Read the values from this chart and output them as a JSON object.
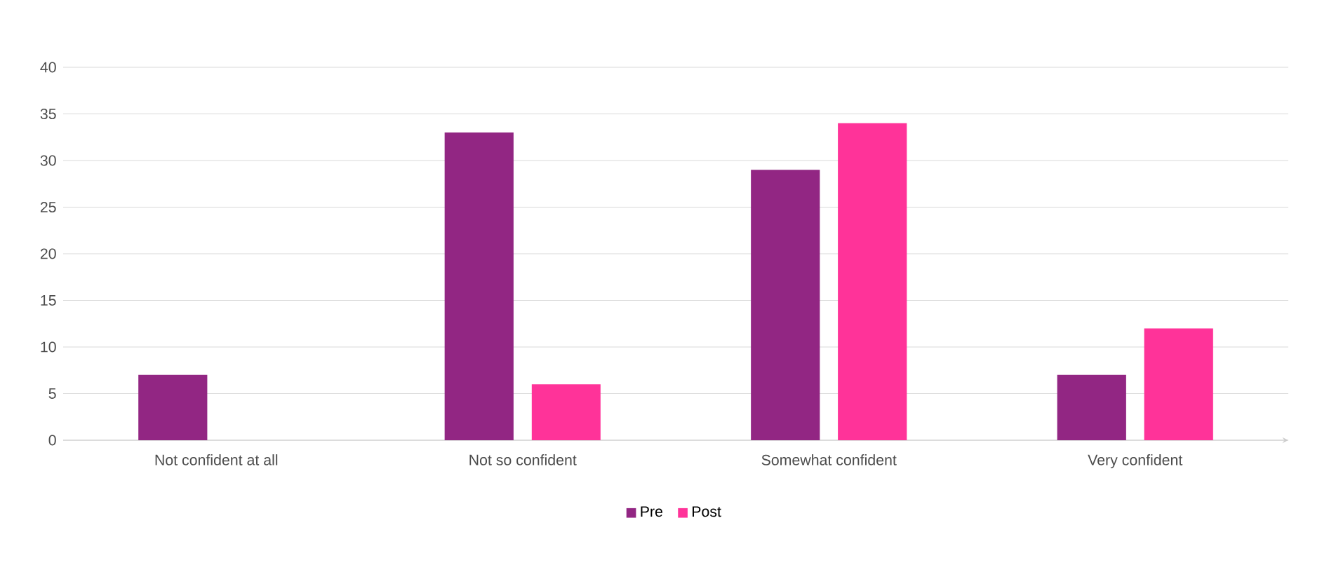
{
  "chart_data": {
    "type": "bar",
    "categories": [
      "Not confident at all",
      "Not so confident",
      "Somewhat confident",
      "Very confident"
    ],
    "series": [
      {
        "name": "Pre",
        "color": "#922683",
        "values": [
          7,
          33,
          29,
          7
        ]
      },
      {
        "name": "Post",
        "color": "#ff3399",
        "values": [
          null,
          6,
          34,
          12
        ]
      }
    ],
    "ylim": [
      0,
      40
    ],
    "yticks": [
      0,
      5,
      10,
      15,
      20,
      25,
      30,
      35,
      40
    ],
    "grid": "y",
    "legend": "bottom"
  }
}
